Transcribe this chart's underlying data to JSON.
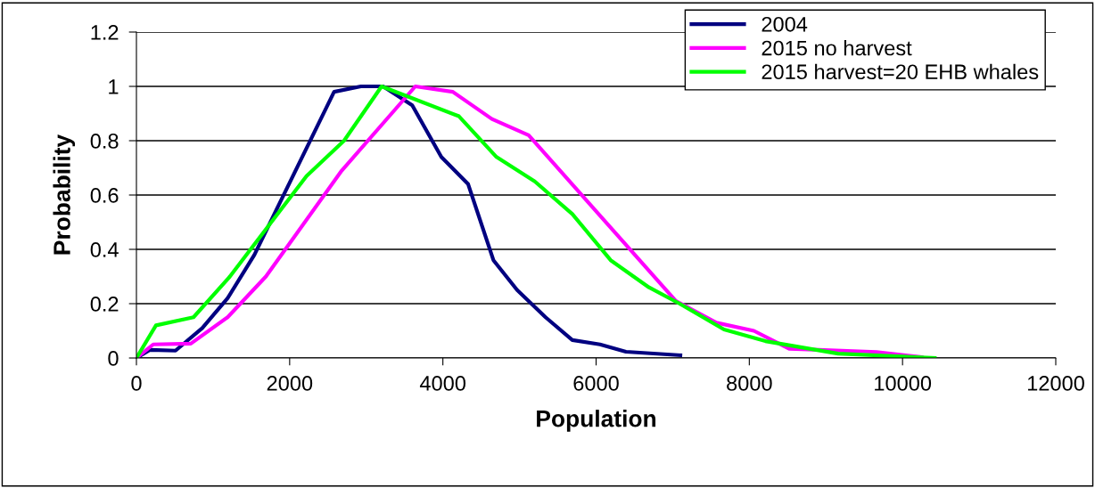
{
  "chart_data": {
    "type": "line",
    "xlabel": "Population",
    "ylabel": "Probability",
    "xlim": [
      0,
      12000
    ],
    "xticks": [
      0,
      2000,
      4000,
      6000,
      8000,
      10000,
      12000
    ],
    "ylim": [
      0,
      1.2
    ],
    "yticks": [
      0,
      0.2,
      0.4,
      0.6,
      0.8,
      1,
      1.2
    ],
    "grid": "y",
    "legend": "top right",
    "marker": "none",
    "line_style": "solid",
    "series": [
      {
        "name": "2004",
        "color": "#000080",
        "x": [
          0,
          175,
          510,
          860,
          1190,
          1540,
          2580,
          2930,
          3220,
          3600,
          3980,
          4330,
          4660,
          4970,
          5340,
          5690,
          6050,
          6390,
          7100
        ],
        "values": [
          0,
          0.03,
          0.027,
          0.11,
          0.22,
          0.38,
          0.98,
          1.0,
          1.0,
          0.93,
          0.74,
          0.64,
          0.36,
          0.25,
          0.15,
          0.066,
          0.05,
          0.023,
          0.01
        ]
      },
      {
        "name": "2015 no harvest",
        "color": "#ff00ff",
        "x": [
          0,
          220,
          710,
          1190,
          1690,
          2680,
          3640,
          4130,
          4640,
          5120,
          7040,
          7570,
          8060,
          8520,
          9660,
          10250
        ],
        "values": [
          0,
          0.05,
          0.053,
          0.15,
          0.3,
          0.69,
          1.0,
          0.98,
          0.88,
          0.82,
          0.21,
          0.13,
          0.1,
          0.034,
          0.022,
          0.003
        ]
      },
      {
        "name": "2015 harvest=20 EHB whales",
        "color": "#00ff00",
        "x": [
          0,
          255,
          745,
          1220,
          2220,
          2710,
          3200,
          4210,
          4700,
          5200,
          5690,
          6190,
          6690,
          7090,
          7670,
          8210,
          9160,
          10420
        ],
        "values": [
          0,
          0.12,
          0.15,
          0.3,
          0.67,
          0.8,
          1.0,
          0.89,
          0.74,
          0.65,
          0.53,
          0.36,
          0.26,
          0.2,
          0.105,
          0.062,
          0.016,
          0
        ]
      }
    ]
  }
}
